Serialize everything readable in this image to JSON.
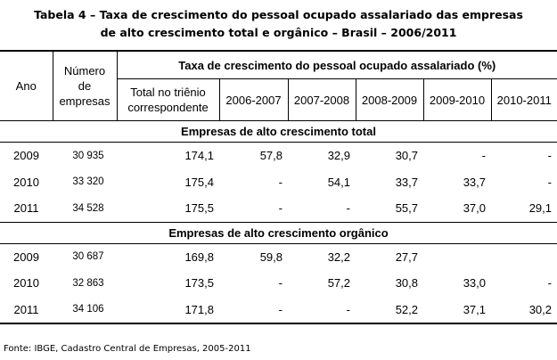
{
  "title_line1": "Tabela 4 – Taxa de crescimento do pessoal ocupado assalariado das empresas",
  "title_line2": "de alto crescimento total e orgânico – Brasil – 2006/2011",
  "headers": {
    "ano": "Ano",
    "numero": [
      "Número",
      "de",
      "empresas"
    ],
    "span": "Taxa de crescimento do pessoal ocupado assalariado (%)",
    "total": [
      "Total no triênio",
      "correspondente"
    ],
    "periods": [
      "2006-2007",
      "2007-2008",
      "2008-2009",
      "2009-2010",
      "2010-2011"
    ]
  },
  "sections": [
    {
      "label": "Empresas de alto crescimento total",
      "rows": [
        {
          "ano": "2009",
          "numero": "30 935",
          "total": "174,1",
          "vals": [
            "57,8",
            "32,9",
            "30,7",
            "-",
            "-"
          ]
        },
        {
          "ano": "2010",
          "numero": "33 320",
          "total": "175,4",
          "vals": [
            "-",
            "54,1",
            "33,7",
            "33,7",
            "-"
          ]
        },
        {
          "ano": "2011",
          "numero": "34 528",
          "total": "175,5",
          "vals": [
            "-",
            "-",
            "55,7",
            "37,0",
            "29,1"
          ]
        }
      ]
    },
    {
      "label": "Empresas de alto crescimento orgânico",
      "rows": [
        {
          "ano": "2009",
          "numero": "30 687",
          "total": "169,8",
          "vals": [
            "59,8",
            "32,2",
            "27,7",
            "",
            ""
          ]
        },
        {
          "ano": "2010",
          "numero": "32 863",
          "total": "173,5",
          "vals": [
            "-",
            "57,2",
            "30,8",
            "33,0",
            "-"
          ]
        },
        {
          "ano": "2011",
          "numero": "34 106",
          "total": "171,8",
          "vals": [
            "-",
            "-",
            "52,2",
            "37,1",
            "30,2"
          ]
        }
      ]
    }
  ],
  "source": "Fonte: IBGE, Cadastro Central de Empresas, 2005-2011"
}
